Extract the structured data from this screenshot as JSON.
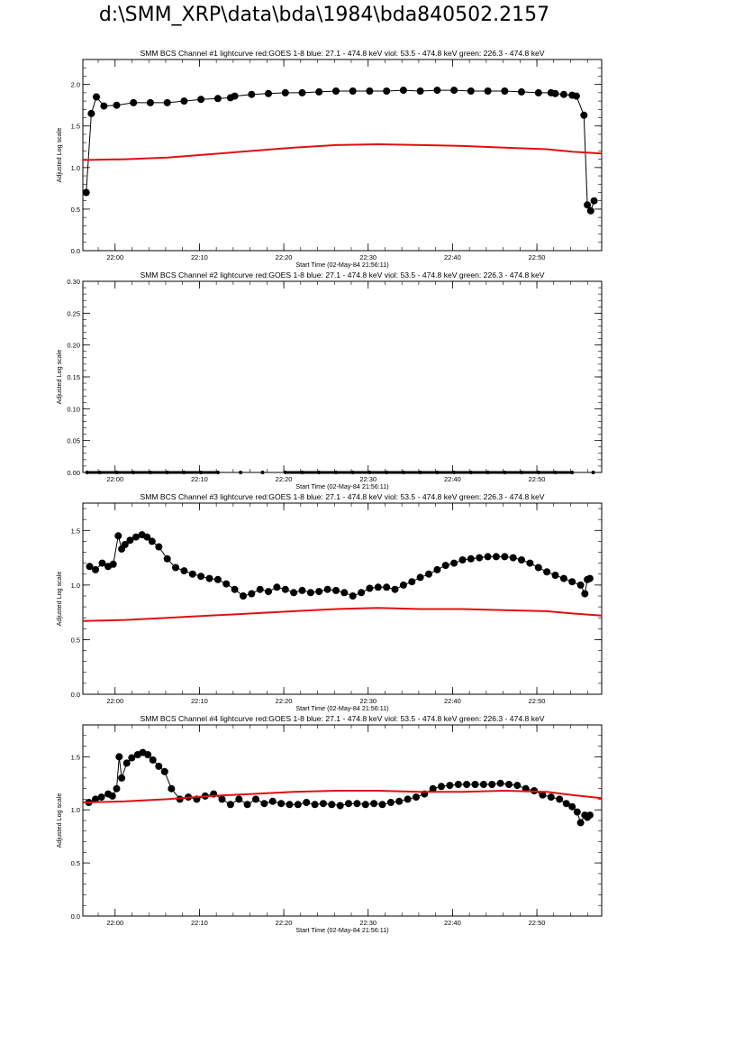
{
  "page": {
    "title": "d:\\SMM_XRP\\data\\bda\\1984\\bda840502.2157"
  },
  "style": {
    "black_series_color": "#000000",
    "red_series_color": "#e01010"
  },
  "chart_data": [
    {
      "type": "line",
      "title": "SMM BCS Channel #1 lightcurve  red:GOES 1-8  blue: 27.1 - 474.8 keV  viol: 53.5 - 474.8 keV  green: 226.3 - 474.8 keV",
      "xlabel": "Start Time (02-May-84 21:56:11)",
      "ylabel": "Adjusted Log scale",
      "x_unit": "minutes from 21:56:11",
      "xlim": [
        0,
        61.5
      ],
      "ylim": [
        0,
        2.3
      ],
      "xtick_labels": [
        "22:00",
        "22:10",
        "22:20",
        "22:30",
        "22:40",
        "22:50"
      ],
      "ytick_labels": [
        "0.0",
        "0.5",
        "1.0",
        "1.5",
        "2.0"
      ],
      "series": [
        {
          "color": "black",
          "marker": "circle",
          "x": [
            0.4,
            1.0,
            1.6,
            2.5,
            4,
            6,
            8,
            10,
            12,
            14,
            16,
            17.5,
            18,
            20,
            22,
            24,
            26,
            28,
            30,
            32,
            34,
            36,
            38,
            40,
            42,
            44,
            46,
            48,
            50,
            52,
            54,
            55.5,
            56,
            57,
            58,
            58.5,
            59.4,
            59.8,
            60.2,
            60.6
          ],
          "y": [
            0.7,
            1.65,
            1.85,
            1.74,
            1.75,
            1.78,
            1.78,
            1.78,
            1.8,
            1.82,
            1.83,
            1.84,
            1.86,
            1.88,
            1.89,
            1.9,
            1.9,
            1.91,
            1.92,
            1.92,
            1.92,
            1.92,
            1.93,
            1.92,
            1.93,
            1.93,
            1.92,
            1.92,
            1.92,
            1.91,
            1.9,
            1.9,
            1.89,
            1.88,
            1.87,
            1.86,
            1.63,
            0.55,
            0.48,
            0.6
          ]
        },
        {
          "color": "red",
          "marker": "none",
          "x": [
            0,
            5,
            10,
            15,
            20,
            25,
            30,
            35,
            40,
            45,
            50,
            55,
            58,
            61.5
          ],
          "y": [
            1.09,
            1.1,
            1.12,
            1.16,
            1.2,
            1.24,
            1.27,
            1.28,
            1.27,
            1.26,
            1.24,
            1.22,
            1.19,
            1.17
          ]
        }
      ]
    },
    {
      "type": "line",
      "title": "SMM BCS Channel #2 lightcurve  red:GOES 1-8  blue: 27.1 - 474.8 keV  viol: 53.5 - 474.8 keV  green: 226.3 - 474.8 keV",
      "xlabel": "Start Time (02-May-84 21:56:11)",
      "ylabel": "Adjusted Log scale",
      "x_unit": "minutes from 21:56:11",
      "xlim": [
        0,
        61.5
      ],
      "ylim": [
        0,
        0.3
      ],
      "xtick_labels": [
        "22:00",
        "22:10",
        "22:20",
        "22:30",
        "22:40",
        "22:50"
      ],
      "ytick_labels": [
        "0.00",
        "0.05",
        "0.10",
        "0.15",
        "0.20",
        "0.25",
        "0.30"
      ],
      "series": [
        {
          "color": "black",
          "marker": "circle",
          "x": [
            0.5,
            2,
            4,
            6,
            8,
            10,
            12,
            14,
            16,
            18.7,
            21.3,
            24,
            26,
            28,
            30,
            32,
            34,
            36,
            38,
            40,
            42,
            44,
            46,
            48,
            50,
            52,
            54,
            56,
            58,
            60.5
          ],
          "y": [
            0,
            0,
            0,
            0,
            0,
            0,
            0,
            0,
            0,
            0,
            0,
            0,
            0,
            0,
            0,
            0,
            0,
            0,
            0,
            0,
            0,
            0,
            0,
            0,
            0,
            0,
            0,
            0,
            0,
            0
          ]
        }
      ]
    },
    {
      "type": "line",
      "title": "SMM BCS Channel #3 lightcurve  red:GOES 1-8  blue: 27.1 - 474.8 keV  viol: 53.5 - 474.8 keV  green: 226.3 - 474.8 keV",
      "xlabel": "Start Time (02-May-84 21:56:11)",
      "ylabel": "Adjusted Log scale",
      "x_unit": "minutes from 21:56:11",
      "xlim": [
        0,
        61.5
      ],
      "ylim": [
        0,
        1.75
      ],
      "xtick_labels": [
        "22:00",
        "22:10",
        "22:20",
        "22:30",
        "22:40",
        "22:50"
      ],
      "ytick_labels": [
        "0.0",
        "0.5",
        "1.0",
        "1.5"
      ],
      "series": [
        {
          "color": "black",
          "marker": "circle",
          "x": [
            0.8,
            1.5,
            2.3,
            3,
            3.6,
            4.2,
            4.6,
            5,
            5.6,
            6.3,
            7,
            7.6,
            8.2,
            9,
            10,
            11,
            12,
            13,
            14,
            15,
            16,
            17,
            18,
            19,
            20,
            21,
            22,
            23,
            24,
            25,
            26,
            27,
            28,
            29,
            30,
            31,
            32,
            33,
            34,
            35,
            36,
            37,
            38,
            39,
            40,
            41,
            42,
            43,
            44,
            45,
            46,
            47,
            48,
            49,
            50,
            51,
            52,
            53,
            54,
            55,
            56,
            57,
            58,
            59,
            59.5,
            59.8,
            60.1
          ],
          "y": [
            1.17,
            1.14,
            1.2,
            1.17,
            1.19,
            1.45,
            1.33,
            1.37,
            1.41,
            1.44,
            1.46,
            1.44,
            1.4,
            1.35,
            1.24,
            1.16,
            1.13,
            1.1,
            1.08,
            1.06,
            1.05,
            1.01,
            0.96,
            0.9,
            0.92,
            0.96,
            0.94,
            0.98,
            0.96,
            0.93,
            0.95,
            0.93,
            0.94,
            0.96,
            0.95,
            0.93,
            0.9,
            0.93,
            0.97,
            0.98,
            0.98,
            0.96,
            1.0,
            1.03,
            1.07,
            1.1,
            1.14,
            1.18,
            1.2,
            1.23,
            1.24,
            1.25,
            1.26,
            1.26,
            1.26,
            1.25,
            1.23,
            1.2,
            1.16,
            1.12,
            1.09,
            1.06,
            1.03,
            1.0,
            0.92,
            1.05,
            1.06
          ]
        },
        {
          "color": "red",
          "marker": "none",
          "x": [
            0,
            5,
            10,
            15,
            20,
            25,
            30,
            35,
            40,
            45,
            50,
            55,
            58,
            61.5
          ],
          "y": [
            0.67,
            0.68,
            0.7,
            0.72,
            0.74,
            0.76,
            0.78,
            0.79,
            0.78,
            0.78,
            0.77,
            0.76,
            0.74,
            0.72
          ]
        }
      ]
    },
    {
      "type": "line",
      "title": "SMM BCS Channel #4 lightcurve  red:GOES 1-8  blue: 27.1 - 474.8 keV  viol: 53.5 - 474.8 keV  green: 226.3 - 474.8 keV",
      "xlabel": "Start Time (02-May-84 21:56:11)",
      "ylabel": "Adjusted Log scale",
      "x_unit": "minutes from 21:56:11",
      "xlim": [
        0,
        61.5
      ],
      "ylim": [
        0,
        1.8
      ],
      "xtick_labels": [
        "22:00",
        "22:10",
        "22:20",
        "22:30",
        "22:40",
        "22:50"
      ],
      "ytick_labels": [
        "0.0",
        "0.5",
        "1.0",
        "1.5"
      ],
      "series": [
        {
          "color": "black",
          "marker": "circle",
          "x": [
            0.7,
            1.5,
            2.2,
            3,
            3.5,
            4,
            4.3,
            4.6,
            5.2,
            5.8,
            6.5,
            7.1,
            7.7,
            8.3,
            9,
            9.7,
            10.5,
            11.5,
            12.5,
            13.5,
            14.5,
            15.5,
            16.5,
            17.5,
            18.5,
            19.5,
            20.5,
            21.5,
            22.5,
            23.5,
            24.5,
            25.5,
            26.5,
            27.5,
            28.5,
            29.5,
            30.5,
            31.5,
            32.5,
            33.5,
            34.5,
            35.5,
            36.5,
            37.5,
            38.5,
            39.5,
            40.5,
            41.5,
            42.5,
            43.5,
            44.5,
            45.5,
            46.5,
            47.5,
            48.5,
            49.5,
            50.5,
            51.5,
            52.5,
            53.5,
            54.5,
            55.5,
            56.5,
            57.3,
            58,
            58.6,
            59,
            59.5,
            59.8,
            60.1
          ],
          "y": [
            1.07,
            1.1,
            1.12,
            1.15,
            1.13,
            1.2,
            1.5,
            1.3,
            1.44,
            1.49,
            1.52,
            1.54,
            1.52,
            1.47,
            1.41,
            1.36,
            1.2,
            1.1,
            1.12,
            1.1,
            1.13,
            1.15,
            1.1,
            1.05,
            1.1,
            1.05,
            1.1,
            1.06,
            1.08,
            1.06,
            1.05,
            1.05,
            1.07,
            1.05,
            1.06,
            1.05,
            1.04,
            1.06,
            1.06,
            1.05,
            1.06,
            1.05,
            1.07,
            1.08,
            1.1,
            1.12,
            1.15,
            1.2,
            1.22,
            1.23,
            1.24,
            1.24,
            1.24,
            1.24,
            1.24,
            1.25,
            1.24,
            1.23,
            1.2,
            1.18,
            1.14,
            1.12,
            1.1,
            1.06,
            1.03,
            0.98,
            0.88,
            0.95,
            0.93,
            0.95
          ]
        },
        {
          "color": "red",
          "marker": "none",
          "x": [
            0,
            5,
            10,
            15,
            20,
            25,
            30,
            35,
            40,
            45,
            50,
            55,
            58,
            61.5
          ],
          "y": [
            1.07,
            1.08,
            1.1,
            1.13,
            1.15,
            1.17,
            1.18,
            1.18,
            1.17,
            1.17,
            1.18,
            1.17,
            1.14,
            1.11
          ]
        }
      ]
    }
  ]
}
